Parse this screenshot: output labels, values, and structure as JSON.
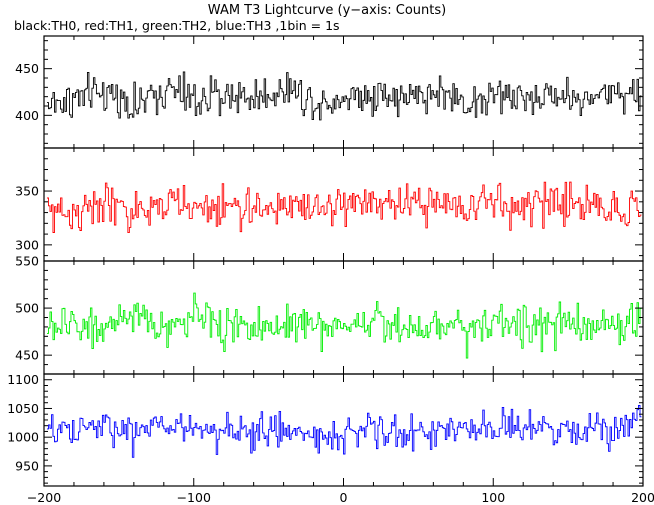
{
  "title": "WAM T3 Lightcurve (y−axis: Counts)",
  "subtitle": "black:TH0, red:TH1, green:TH2, blue:TH3 ,1bin = 1s",
  "chart_data": {
    "type": "line",
    "drawstyle": "steps",
    "title": "WAM T3 Lightcurve (y−axis: Counts)",
    "subtitle": "black:TH0, red:TH1, green:TH2, blue:TH3 ,1bin = 1s",
    "xlabel": "",
    "ylabel": "",
    "xlim": [
      -200,
      200
    ],
    "x_ticks": [
      -200,
      -100,
      0,
      100,
      200
    ],
    "x_tick_labels": [
      "−200",
      "−100",
      "0",
      "100",
      "200"
    ],
    "bin_seconds": 1,
    "data_x_range": [
      -198,
      198
    ],
    "grid": false,
    "legend": "none",
    "panels": [
      {
        "series": "TH0",
        "color": "#000000",
        "ylim": [
          365,
          485
        ],
        "y_ticks": [
          400,
          450
        ],
        "y_tick_labels": [
          "400",
          "450"
        ],
        "mean": 420,
        "noise_sigma": 20,
        "values_sampled_every_20s": [
          412,
          418,
          425,
          410,
          428,
          415,
          422,
          419,
          430,
          414,
          420,
          424,
          417,
          426,
          413,
          421,
          418,
          423,
          416,
          427,
          419
        ]
      },
      {
        "series": "TH1",
        "color": "#ff0000",
        "ylim": [
          285,
          390
        ],
        "y_ticks": [
          300,
          350
        ],
        "y_tick_labels": [
          "300",
          "350"
        ],
        "mean": 335,
        "noise_sigma": 18,
        "values_sampled_every_20s": [
          332,
          330,
          338,
          327,
          340,
          333,
          336,
          331,
          338,
          335,
          337,
          340,
          334,
          341,
          336,
          339,
          333,
          342,
          337,
          334,
          336
        ]
      },
      {
        "series": "TH2",
        "color": "#00ee00",
        "ylim": [
          430,
          550
        ],
        "y_ticks": [
          450,
          500,
          550
        ],
        "y_tick_labels": [
          "450",
          "500",
          "550"
        ],
        "mean": 482,
        "noise_sigma": 20,
        "values_sampled_every_20s": [
          478,
          484,
          480,
          486,
          479,
          492,
          481,
          477,
          485,
          480,
          483,
          487,
          479,
          484,
          481,
          486,
          480,
          483,
          478,
          482,
          490
        ]
      },
      {
        "series": "TH3",
        "color": "#0000ff",
        "ylim": [
          915,
          1110
        ],
        "y_ticks": [
          950,
          1000,
          1050,
          1100
        ],
        "y_tick_labels": [
          "950",
          "1000",
          "1050",
          "1100"
        ],
        "mean": 1010,
        "noise_sigma": 30,
        "values_sampled_every_20s": [
          1005,
          1012,
          1018,
          1008,
          1022,
          1015,
          1010,
          1006,
          1013,
          1002,
          1009,
          1011,
          1004,
          1016,
          1008,
          1012,
          1019,
          1007,
          1014,
          1021,
          1035
        ]
      }
    ]
  }
}
